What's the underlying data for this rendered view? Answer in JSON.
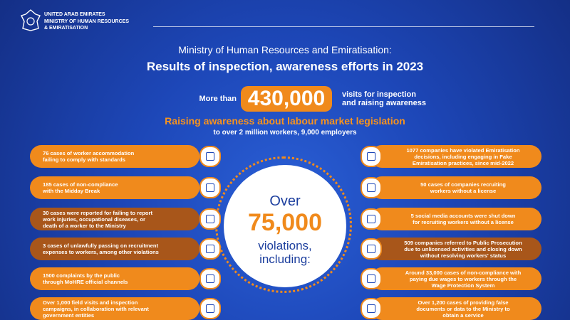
{
  "header": {
    "org_lines": [
      "UNITED ARAB EMIRATES",
      "MINISTRY OF HUMAN RESOURCES",
      "& EMIRATISATION"
    ],
    "subtitle": "Ministry of Human Resources and Emiratisation:",
    "title": "Results of inspection, awareness efforts in 2023"
  },
  "visits": {
    "prefix": "More than",
    "number": "430,000",
    "suffix_lines": [
      "visits for inspection",
      "and raising awareness"
    ]
  },
  "awareness": {
    "heading": "Raising awareness about labour market legislation",
    "detail": "to over 2 million workers, 9,000 employers"
  },
  "center": {
    "line1": "Over",
    "number": "75,000",
    "line2": "violations,",
    "line3": "including:"
  },
  "left_items": [
    [
      "76 cases of worker accommodation",
      "failing to comply with standards"
    ],
    [
      "185 cases of non-compliance",
      "with the Midday Break"
    ],
    [
      "30 cases were reported for failing to report",
      "work injuries, occupational diseases, or",
      "death of a worker to the Ministry"
    ],
    [
      "3 cases of unlawfully passing on recruitment",
      "expenses to workers, among other violations"
    ],
    [
      "1500 complaints by the public",
      "through MoHRE official channels"
    ],
    [
      "Over 1,000 field visits and inspection",
      "campaigns, in collaboration with relevant",
      "government entities"
    ]
  ],
  "right_items": [
    [
      "1077 companies have violated Emiratisation",
      "decisions, including engaging in Fake",
      "Emiratisation practices, since mid-2022"
    ],
    [
      "50 cases of companies recruiting",
      "workers without a license"
    ],
    [
      "5 social media accounts were shut down",
      "for recruiting workers without a license"
    ],
    [
      "509 companies referred to Public Prosecution",
      "due to unlicensed activities and closing down",
      "without resolving workers' status"
    ],
    [
      "Around 33,000 cases of non-compliance with",
      "paying due wages to workers through the",
      "Wage Protection System"
    ],
    [
      "Over 1,200 cases of providing false",
      "documents or data to the Ministry to",
      "obtain a service"
    ]
  ]
}
